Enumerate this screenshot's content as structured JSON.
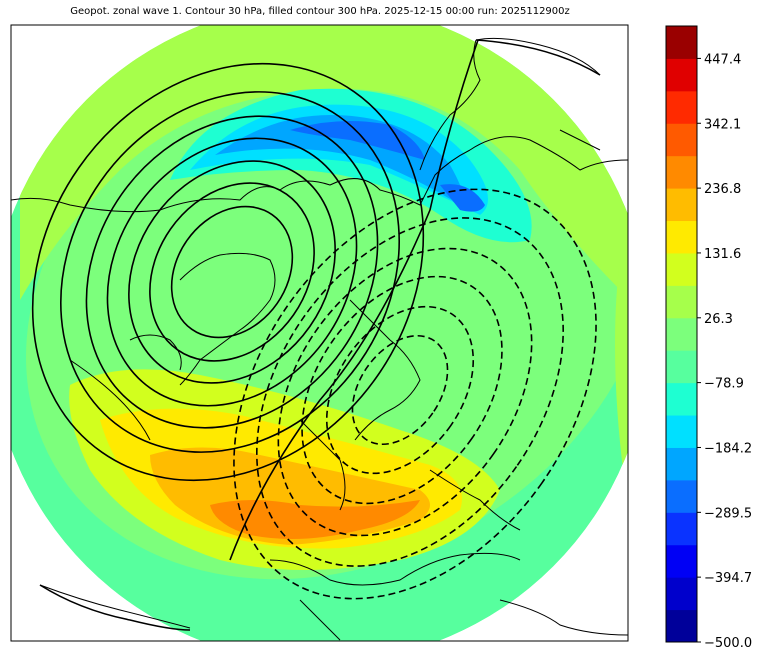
{
  "title": "Geopot. zonal wave 1. Contour 30 hPa, filled contour 300 hPa. 2025-12-15 00:00 run: 2025112900z",
  "colorbar": {
    "min": -500.0,
    "max": 500.0,
    "tick_labels": [
      "447.4",
      "342.1",
      "236.8",
      "131.6",
      "26.3",
      "−78.9",
      "−184.2",
      "−289.5",
      "−394.7",
      "−500.0"
    ],
    "tick_values": [
      447.4,
      342.1,
      236.8,
      131.6,
      26.3,
      -78.9,
      -184.2,
      -289.5,
      -394.7,
      -500.0
    ],
    "colors": [
      "#00009a",
      "#0000cc",
      "#0000f5",
      "#0a33ff",
      "#0a6eff",
      "#00a6ff",
      "#00e0ff",
      "#1effd2",
      "#57ff9e",
      "#7cff7c",
      "#a6ff4b",
      "#d2ff1e",
      "#ffea00",
      "#ffbc00",
      "#ff8a00",
      "#ff5a00",
      "#ff2a00",
      "#e00000",
      "#9a0000"
    ]
  },
  "map": {
    "projection": "north-polar-stereographic",
    "filled_field": "300 hPa geopotential zonal wave 1",
    "contour_field": "30 hPa geopotential zonal wave 1",
    "positive_contour_style": "solid",
    "negative_contour_style": "dashed",
    "contour_color": "#000000",
    "coastline_color": "#000000",
    "background_color": "#ffffff"
  }
}
